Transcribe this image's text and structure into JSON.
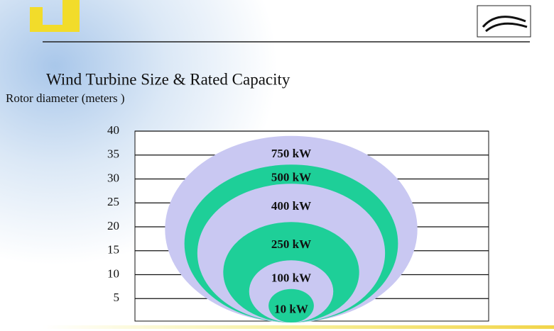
{
  "chart_data": {
    "type": "nested-ellipse",
    "title": "Wind Turbine Size & Rated Capacity",
    "y_label": "Rotor diameter (meters )",
    "categories": [
      "750 kW",
      "500 kW",
      "400 kW",
      "250 kW",
      "100 kW",
      "10 kW"
    ],
    "values": [
      39,
      33,
      29,
      21,
      13,
      7
    ],
    "colors": [
      "#c9c8f2",
      "#1ecf98",
      "#c9c8f2",
      "#1ecf98",
      "#c9c8f2",
      "#1ecf98"
    ],
    "ylim": [
      0,
      40
    ],
    "yticks": [
      5,
      10,
      15,
      20,
      25,
      30,
      35,
      40
    ],
    "grid": true
  }
}
